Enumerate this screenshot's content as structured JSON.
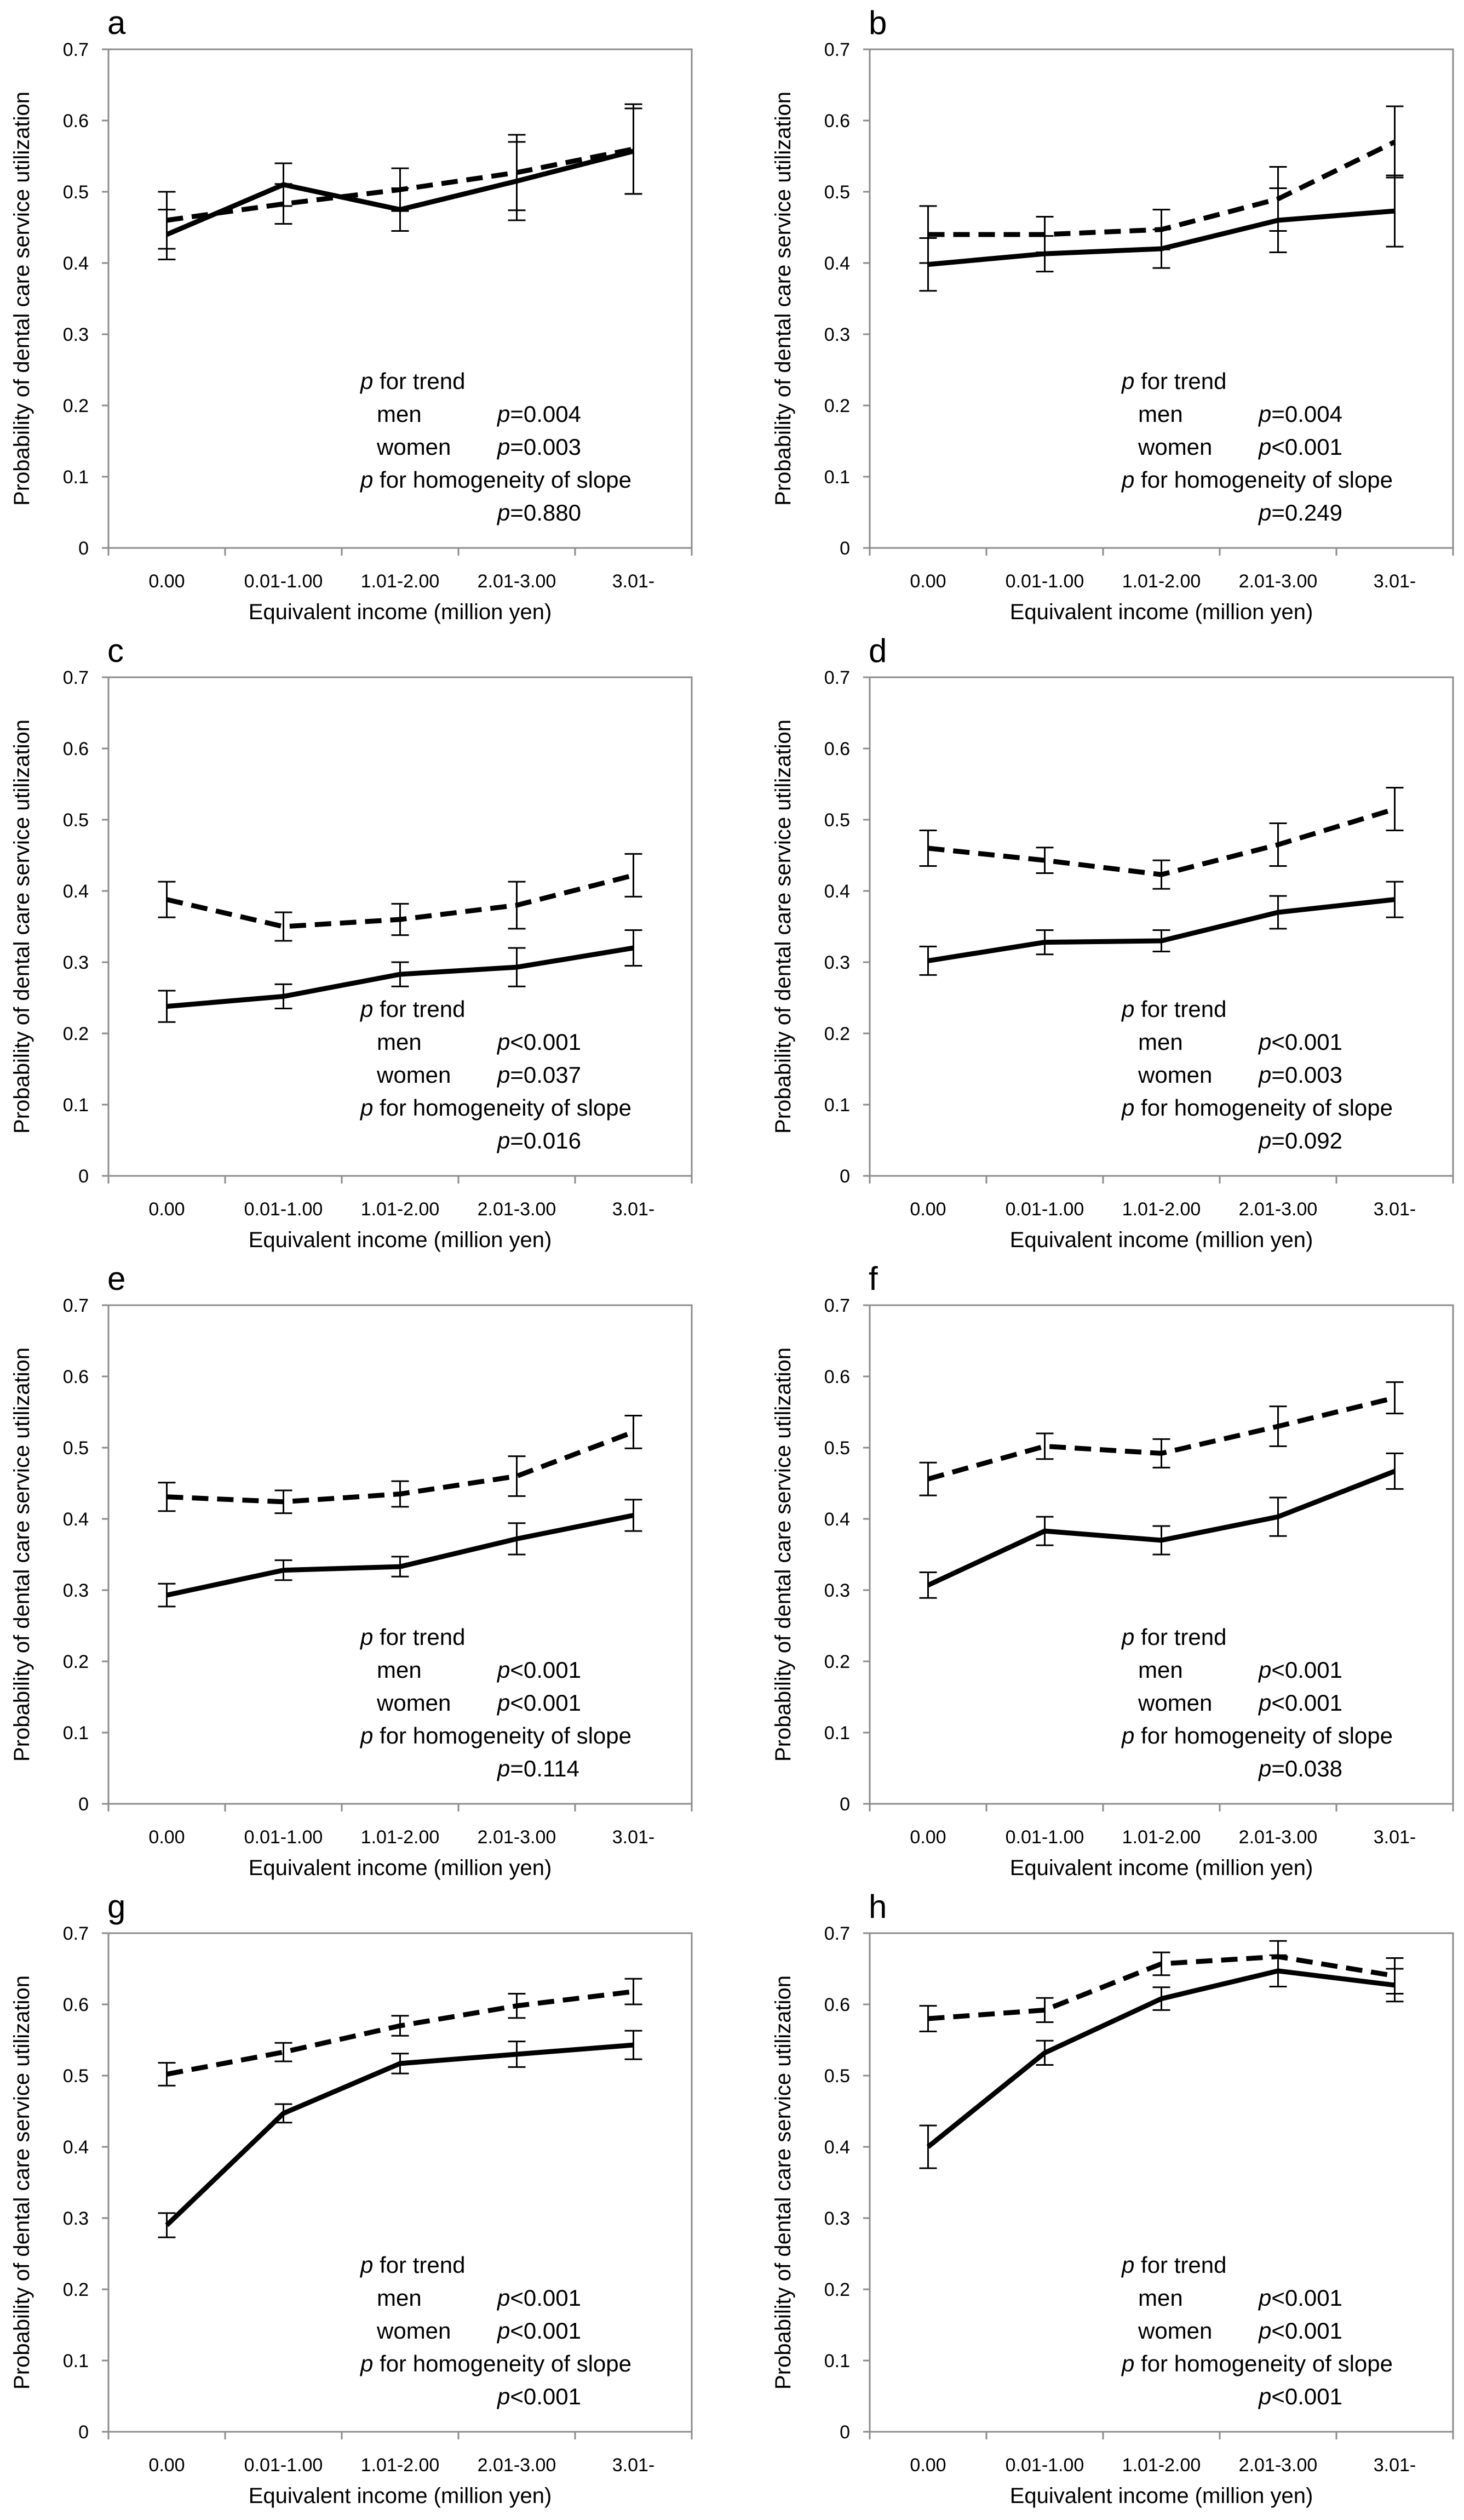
{
  "figure": {
    "panels_per_row": 2,
    "xlabel": "Equivalent income (million yen)",
    "ylabel": "Probability of dental care service utilization",
    "categories": [
      "0.00",
      "0.01-1.00",
      "1.01-2.00",
      "2.01-3.00",
      "3.01-"
    ],
    "yticks": [
      "0",
      "0.1",
      "0.2",
      "0.3",
      "0.4",
      "0.5",
      "0.6",
      "0.7"
    ],
    "ylim": [
      0,
      0.7
    ],
    "annotation": {
      "trend_p": "p",
      "trend_rest": " for trend",
      "men": "men",
      "women": "women",
      "homog_p": "p",
      "homog_rest": " for homogeneity of slope"
    }
  },
  "chart_data": [
    {
      "type": "line",
      "letter": "a",
      "series": [
        {
          "name": "men",
          "style": "solid",
          "values": [
            0.44,
            0.51,
            0.475,
            0.515,
            0.557
          ],
          "err": [
            0.035,
            0.03,
            0.03,
            0.055,
            0.06
          ]
        },
        {
          "name": "women",
          "style": "dashed",
          "values": [
            0.46,
            0.483,
            0.503,
            0.527,
            0.56
          ],
          "err": [
            0.04,
            0.028,
            0.03,
            0.053,
            0.063
          ]
        }
      ],
      "p_men": "=0.004",
      "p_women": "=0.003",
      "p_homog": "=0.880"
    },
    {
      "type": "line",
      "letter": "b",
      "series": [
        {
          "name": "men",
          "style": "solid",
          "values": [
            0.398,
            0.413,
            0.42,
            0.46,
            0.473
          ],
          "err": [
            0.037,
            0.025,
            0.027,
            0.045,
            0.05
          ]
        },
        {
          "name": "women",
          "style": "dashed",
          "values": [
            0.44,
            0.44,
            0.447,
            0.49,
            0.57
          ],
          "err": [
            0.04,
            0.025,
            0.028,
            0.045,
            0.05
          ]
        }
      ],
      "p_men": "=0.004",
      "p_women": "<0.001",
      "p_homog": "=0.249"
    },
    {
      "type": "line",
      "letter": "c",
      "series": [
        {
          "name": "men",
          "style": "solid",
          "values": [
            0.238,
            0.252,
            0.283,
            0.293,
            0.32
          ],
          "err": [
            0.022,
            0.017,
            0.017,
            0.027,
            0.025
          ]
        },
        {
          "name": "women",
          "style": "dashed",
          "values": [
            0.388,
            0.35,
            0.36,
            0.38,
            0.422
          ],
          "err": [
            0.025,
            0.02,
            0.022,
            0.033,
            0.03
          ]
        }
      ],
      "p_men": "<0.001",
      "p_women": "=0.037",
      "p_homog": "=0.016"
    },
    {
      "type": "line",
      "letter": "d",
      "series": [
        {
          "name": "men",
          "style": "solid",
          "values": [
            0.302,
            0.328,
            0.33,
            0.37,
            0.388
          ],
          "err": [
            0.02,
            0.017,
            0.015,
            0.023,
            0.025
          ]
        },
        {
          "name": "women",
          "style": "dashed",
          "values": [
            0.46,
            0.443,
            0.423,
            0.465,
            0.515
          ],
          "err": [
            0.025,
            0.018,
            0.02,
            0.03,
            0.03
          ]
        }
      ],
      "p_men": "<0.001",
      "p_women": "=0.003",
      "p_homog": "=0.092"
    },
    {
      "type": "line",
      "letter": "e",
      "series": [
        {
          "name": "men",
          "style": "solid",
          "values": [
            0.293,
            0.328,
            0.333,
            0.372,
            0.405
          ],
          "err": [
            0.016,
            0.014,
            0.014,
            0.022,
            0.022
          ]
        },
        {
          "name": "women",
          "style": "dashed",
          "values": [
            0.431,
            0.424,
            0.435,
            0.46,
            0.522
          ],
          "err": [
            0.02,
            0.016,
            0.018,
            0.028,
            0.023
          ]
        }
      ],
      "p_men": "<0.001",
      "p_women": "<0.001",
      "p_homog": "=0.114"
    },
    {
      "type": "line",
      "letter": "f",
      "series": [
        {
          "name": "men",
          "style": "solid",
          "values": [
            0.307,
            0.383,
            0.37,
            0.403,
            0.467
          ],
          "err": [
            0.018,
            0.02,
            0.02,
            0.027,
            0.025
          ]
        },
        {
          "name": "women",
          "style": "dashed",
          "values": [
            0.456,
            0.502,
            0.492,
            0.53,
            0.57
          ],
          "err": [
            0.023,
            0.018,
            0.02,
            0.028,
            0.022
          ]
        }
      ],
      "p_men": "<0.001",
      "p_women": "<0.001",
      "p_homog": "=0.038"
    },
    {
      "type": "line",
      "letter": "g",
      "series": [
        {
          "name": "men",
          "style": "solid",
          "values": [
            0.29,
            0.447,
            0.517,
            0.53,
            0.543
          ],
          "err": [
            0.017,
            0.013,
            0.014,
            0.018,
            0.02
          ]
        },
        {
          "name": "women",
          "style": "dashed",
          "values": [
            0.502,
            0.533,
            0.57,
            0.598,
            0.618
          ],
          "err": [
            0.016,
            0.013,
            0.014,
            0.017,
            0.018
          ]
        }
      ],
      "p_men": "<0.001",
      "p_women": "<0.001",
      "p_homog": "<0.001"
    },
    {
      "type": "line",
      "letter": "h",
      "series": [
        {
          "name": "men",
          "style": "solid",
          "values": [
            0.4,
            0.532,
            0.608,
            0.647,
            0.627
          ],
          "err": [
            0.03,
            0.017,
            0.016,
            0.022,
            0.023
          ]
        },
        {
          "name": "women",
          "style": "dashed",
          "values": [
            0.58,
            0.592,
            0.657,
            0.667,
            0.64
          ],
          "err": [
            0.018,
            0.017,
            0.016,
            0.022,
            0.025
          ]
        }
      ],
      "p_men": "<0.001",
      "p_women": "<0.001",
      "p_homog": "<0.001"
    }
  ]
}
